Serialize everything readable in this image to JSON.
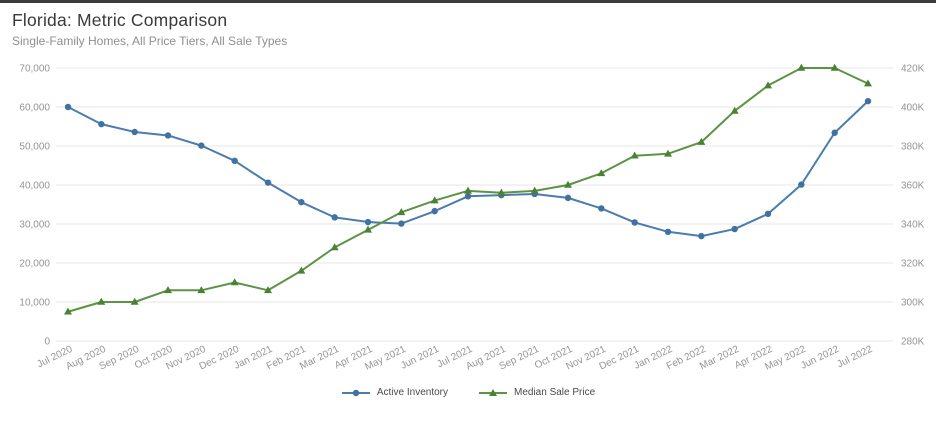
{
  "header": {
    "title": "Florida: Metric Comparison",
    "subtitle": "Single-Family Homes, All Price Tiers, All Sale Types"
  },
  "colors": {
    "accent_blue": "#4a7cad",
    "accent_green": "#5c9345",
    "grid": "#e7e7e7",
    "axis_text": "#949494",
    "topbar": "#3b3b3b"
  },
  "legend": {
    "items": [
      {
        "label": "Active Inventory",
        "icon": "blue-circle-line-marker"
      },
      {
        "label": "Median Sale Price",
        "icon": "green-triangle-line-marker"
      }
    ]
  },
  "chart_data": {
    "type": "line",
    "title": "Florida: Metric Comparison",
    "subtitle": "Single-Family Homes, All Price Tiers, All Sale Types",
    "grid": "horizontal",
    "legend_position": "bottom",
    "categories": [
      "Jul 2020",
      "Aug 2020",
      "Sep 2020",
      "Oct 2020",
      "Nov 2020",
      "Dec 2020",
      "Jan 2021",
      "Feb 2021",
      "Mar 2021",
      "Apr 2021",
      "May 2021",
      "Jun 2021",
      "Jul 2021",
      "Aug 2021",
      "Sep 2021",
      "Oct 2021",
      "Nov 2021",
      "Dec 2021",
      "Jan 2022",
      "Feb 2022",
      "Mar 2022",
      "Apr 2022",
      "May 2022",
      "Jun 2022",
      "Jul 2022"
    ],
    "left_axis": {
      "min": 0,
      "max": 70000,
      "tick_values": [
        0,
        10000,
        20000,
        30000,
        40000,
        50000,
        60000,
        70000
      ],
      "tick_labels": [
        "0",
        "10,000",
        "20,000",
        "30,000",
        "40,000",
        "50,000",
        "60,000",
        "70,000"
      ]
    },
    "right_axis": {
      "min": 280000,
      "max": 420000,
      "tick_values": [
        280000,
        300000,
        320000,
        340000,
        360000,
        380000,
        400000,
        420000
      ],
      "tick_labels": [
        "280K",
        "300K",
        "320K",
        "340K",
        "360K",
        "380K",
        "400K",
        "420K"
      ]
    },
    "series": [
      {
        "name": "Active Inventory",
        "axis": "left",
        "marker": "circle",
        "color": "#4a7cad",
        "marker_color": "#40719f",
        "values": [
          60000,
          55600,
          53600,
          52700,
          50100,
          46200,
          40600,
          35600,
          31700,
          30500,
          30100,
          33300,
          37100,
          37400,
          37700,
          36700,
          34000,
          30400,
          28000,
          26900,
          28700,
          32600,
          40100,
          53400,
          61500
        ]
      },
      {
        "name": "Median Sale Price",
        "axis": "right",
        "marker": "triangle",
        "color": "#5c9345",
        "marker_color": "#4a8233",
        "values": [
          295000,
          300000,
          300000,
          306000,
          306000,
          310000,
          306000,
          316000,
          328000,
          337000,
          346000,
          352000,
          357000,
          356000,
          357000,
          360000,
          366000,
          375000,
          376000,
          382000,
          398000,
          411000,
          420000,
          420000,
          412000
        ]
      }
    ]
  }
}
